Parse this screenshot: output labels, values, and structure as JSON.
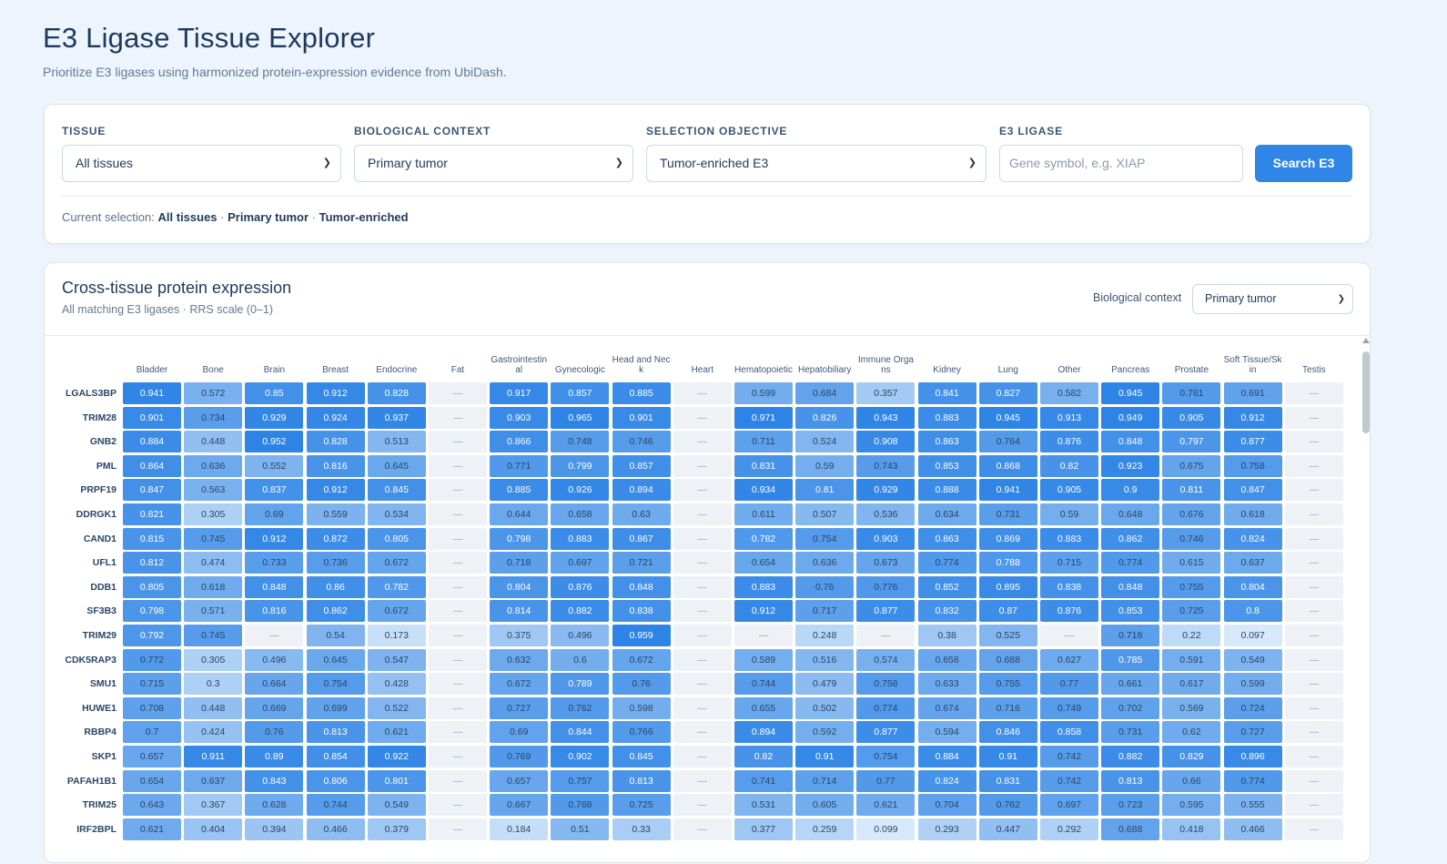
{
  "header": {
    "title": "E3 Ligase Tissue Explorer",
    "subtitle": "Prioritize E3 ligases using harmonized protein-expression evidence from UbiDash."
  },
  "filters": {
    "tissue_label": "TISSUE",
    "tissue_value": "All tissues",
    "context_label": "BIOLOGICAL CONTEXT",
    "context_value": "Primary tumor",
    "objective_label": "SELECTION OBJECTIVE",
    "objective_value": "Tumor-enriched E3",
    "ligase_label": "E3 LIGASE",
    "ligase_placeholder": "Gene symbol, e.g. XIAP",
    "search_label": "Search E3",
    "current_prefix": "Current selection:",
    "current_tissue": "All tissues",
    "current_context": "Primary tumor",
    "current_objective": "Tumor-enriched",
    "sep": "·"
  },
  "heatmap": {
    "title": "Cross-tissue protein expression",
    "subtitle": "All matching E3 ligases · RRS scale (0–1)",
    "context_label": "Biological context",
    "context_value": "Primary tumor",
    "empty_symbol": "—",
    "columns": [
      "Bladder",
      "Bone",
      "Brain",
      "Breast",
      "Endocrine",
      "Fat",
      "Gastrointestinal",
      "Gynecologic",
      "Head and Neck",
      "Heart",
      "Hematopoietic",
      "Hepatobiliary",
      "Immune Organs",
      "Kidney",
      "Lung",
      "Other",
      "Pancreas",
      "Prostate",
      "Soft Tissue/Skin",
      "Testis"
    ],
    "rows": [
      {
        "gene": "LGALS3BP",
        "values": [
          0.941,
          0.572,
          0.85,
          0.912,
          0.828,
          null,
          0.917,
          0.857,
          0.885,
          null,
          0.599,
          0.684,
          0.357,
          0.841,
          0.827,
          0.582,
          0.945,
          0.761,
          0.691,
          null
        ]
      },
      {
        "gene": "TRIM28",
        "values": [
          0.901,
          0.734,
          0.929,
          0.924,
          0.937,
          null,
          0.903,
          0.965,
          0.901,
          null,
          0.971,
          0.826,
          0.943,
          0.883,
          0.945,
          0.913,
          0.949,
          0.905,
          0.912,
          null
        ]
      },
      {
        "gene": "GNB2",
        "values": [
          0.884,
          0.448,
          0.952,
          0.828,
          0.513,
          null,
          0.866,
          0.748,
          0.746,
          null,
          0.711,
          0.524,
          0.908,
          0.863,
          0.764,
          0.876,
          0.848,
          0.797,
          0.877,
          null
        ]
      },
      {
        "gene": "PML",
        "values": [
          0.864,
          0.636,
          0.552,
          0.816,
          0.645,
          null,
          0.771,
          0.799,
          0.857,
          null,
          0.831,
          0.59,
          0.743,
          0.853,
          0.868,
          0.82,
          0.923,
          0.675,
          0.758,
          null
        ]
      },
      {
        "gene": "PRPF19",
        "values": [
          0.847,
          0.563,
          0.837,
          0.912,
          0.845,
          null,
          0.885,
          0.926,
          0.894,
          null,
          0.934,
          0.81,
          0.929,
          0.888,
          0.941,
          0.905,
          0.9,
          0.811,
          0.847,
          null
        ]
      },
      {
        "gene": "DDRGK1",
        "values": [
          0.821,
          0.305,
          0.69,
          0.559,
          0.534,
          null,
          0.644,
          0.658,
          0.63,
          null,
          0.611,
          0.507,
          0.536,
          0.634,
          0.731,
          0.59,
          0.648,
          0.676,
          0.618,
          null
        ]
      },
      {
        "gene": "CAND1",
        "values": [
          0.815,
          0.745,
          0.912,
          0.872,
          0.805,
          null,
          0.798,
          0.883,
          0.867,
          null,
          0.782,
          0.754,
          0.903,
          0.863,
          0.869,
          0.883,
          0.862,
          0.746,
          0.824,
          null
        ]
      },
      {
        "gene": "UFL1",
        "values": [
          0.812,
          0.474,
          0.733,
          0.736,
          0.672,
          null,
          0.718,
          0.697,
          0.721,
          null,
          0.654,
          0.636,
          0.673,
          0.774,
          0.788,
          0.715,
          0.774,
          0.615,
          0.637,
          null
        ]
      },
      {
        "gene": "DDB1",
        "values": [
          0.805,
          0.618,
          0.848,
          0.86,
          0.782,
          null,
          0.804,
          0.876,
          0.848,
          null,
          0.883,
          0.76,
          0.776,
          0.852,
          0.895,
          0.838,
          0.848,
          0.755,
          0.804,
          null
        ]
      },
      {
        "gene": "SF3B3",
        "values": [
          0.798,
          0.571,
          0.816,
          0.862,
          0.672,
          null,
          0.814,
          0.882,
          0.838,
          null,
          0.912,
          0.717,
          0.877,
          0.832,
          0.87,
          0.876,
          0.853,
          0.725,
          0.8,
          null
        ]
      },
      {
        "gene": "TRIM29",
        "values": [
          0.792,
          0.745,
          null,
          0.54,
          0.173,
          null,
          0.375,
          0.496,
          0.959,
          null,
          null,
          0.248,
          null,
          0.38,
          0.525,
          null,
          0.718,
          0.22,
          0.097,
          null
        ]
      },
      {
        "gene": "CDK5RAP3",
        "values": [
          0.772,
          0.305,
          0.496,
          0.645,
          0.547,
          null,
          0.632,
          0.6,
          0.672,
          null,
          0.589,
          0.516,
          0.574,
          0.658,
          0.688,
          0.627,
          0.785,
          0.591,
          0.549,
          null
        ]
      },
      {
        "gene": "SMU1",
        "values": [
          0.715,
          0.3,
          0.664,
          0.754,
          0.428,
          null,
          0.672,
          0.789,
          0.76,
          null,
          0.744,
          0.479,
          0.758,
          0.633,
          0.755,
          0.77,
          0.661,
          0.617,
          0.599,
          null
        ]
      },
      {
        "gene": "HUWE1",
        "values": [
          0.708,
          0.448,
          0.669,
          0.699,
          0.522,
          null,
          0.727,
          0.762,
          0.598,
          null,
          0.655,
          0.502,
          0.774,
          0.674,
          0.716,
          0.749,
          0.702,
          0.569,
          0.724,
          null
        ]
      },
      {
        "gene": "RBBP4",
        "values": [
          0.7,
          0.424,
          0.76,
          0.813,
          0.621,
          null,
          0.69,
          0.844,
          0.766,
          null,
          0.894,
          0.592,
          0.877,
          0.594,
          0.846,
          0.858,
          0.731,
          0.62,
          0.727,
          null
        ]
      },
      {
        "gene": "SKP1",
        "values": [
          0.657,
          0.911,
          0.89,
          0.854,
          0.922,
          null,
          0.769,
          0.902,
          0.845,
          null,
          0.82,
          0.91,
          0.754,
          0.884,
          0.91,
          0.742,
          0.882,
          0.829,
          0.896,
          null
        ]
      },
      {
        "gene": "PAFAH1B1",
        "values": [
          0.654,
          0.637,
          0.843,
          0.806,
          0.801,
          null,
          0.657,
          0.757,
          0.813,
          null,
          0.741,
          0.714,
          0.77,
          0.824,
          0.831,
          0.742,
          0.813,
          0.66,
          0.774,
          null
        ]
      },
      {
        "gene": "TRIM25",
        "values": [
          0.643,
          0.367,
          0.628,
          0.744,
          0.549,
          null,
          0.667,
          0.768,
          0.725,
          null,
          0.531,
          0.605,
          0.621,
          0.704,
          0.762,
          0.697,
          0.723,
          0.595,
          0.555,
          null
        ]
      },
      {
        "gene": "IRF2BPL",
        "values": [
          0.621,
          0.404,
          0.394,
          0.466,
          0.379,
          null,
          0.184,
          0.51,
          0.33,
          null,
          0.377,
          0.259,
          0.099,
          0.293,
          0.447,
          0.292,
          0.688,
          0.418,
          0.466,
          null
        ]
      }
    ]
  }
}
